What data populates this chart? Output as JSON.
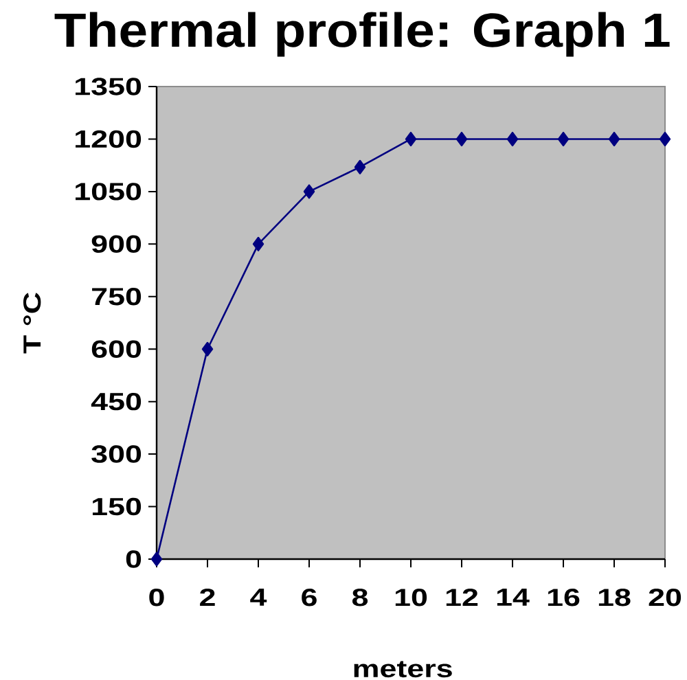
{
  "chart_data": {
    "type": "line",
    "title": "Thermal profile: Graph 1",
    "xlabel": "meters",
    "ylabel": "T °C",
    "x": [
      0,
      2,
      4,
      6,
      8,
      10,
      12,
      14,
      16,
      18,
      20
    ],
    "series": [
      {
        "color": "#000080",
        "values": [
          0,
          600,
          900,
          1050,
          1120,
          1200,
          1200,
          1200,
          1200,
          1200,
          1200
        ]
      }
    ],
    "xlim": [
      0,
      20
    ],
    "ylim": [
      0,
      1350
    ],
    "xticks": [
      0,
      2,
      4,
      6,
      8,
      10,
      12,
      14,
      16,
      18,
      20
    ],
    "yticks": [
      0,
      150,
      300,
      450,
      600,
      750,
      900,
      1050,
      1200,
      1350
    ],
    "marker": "diamond",
    "line_style": "solid"
  }
}
